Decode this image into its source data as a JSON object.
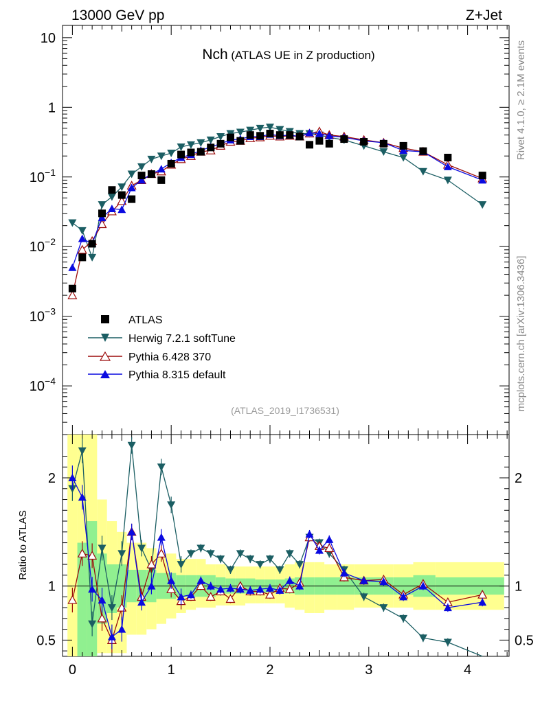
{
  "header": {
    "left": "13000 GeV pp",
    "right": "Z+Jet"
  },
  "title": {
    "main": "Nch",
    "sub": "(ATLAS UE in Z production)"
  },
  "side": {
    "rivet": "Rivet 4.1.0, ≥ 2.1M events",
    "mcplots": "mcplots.cern.ch [arXiv:1306.3436]"
  },
  "analysis_id": "(ATLAS_2019_I1736531)",
  "ratio_ylabel": "Ratio to ATLAS",
  "legend": [
    {
      "label": "ATLAS",
      "series": "atlas"
    },
    {
      "label": "Herwig 7.2.1 softTune",
      "series": "herwig"
    },
    {
      "label": "Pythia 6.428 370",
      "series": "pythia6"
    },
    {
      "label": "Pythia 8.315 default",
      "series": "pythia8"
    }
  ],
  "colors": {
    "herwig": "#1b5e63",
    "pythia6": "#9b0a0a",
    "pythia8": "#0a0ae0",
    "band_inner": "#90f090",
    "band_outer": "#ffff90"
  },
  "chart_data": [
    {
      "type": "scatter",
      "panel": "main",
      "yscale": "log",
      "xlim": [
        -0.1,
        4.42
      ],
      "ylim": [
        2e-05,
        15
      ],
      "x_ticks": [
        0,
        1,
        2,
        3,
        4
      ],
      "y_tick_labels": [
        "10",
        "1",
        "10^-1",
        "10^-2",
        "10^-3",
        "10^-4"
      ],
      "x": [
        0.0,
        0.1,
        0.2,
        0.3,
        0.4,
        0.5,
        0.6,
        0.7,
        0.8,
        0.9,
        1.0,
        1.1,
        1.2,
        1.3,
        1.4,
        1.5,
        1.6,
        1.7,
        1.8,
        1.9,
        2.0,
        2.1,
        2.2,
        2.3,
        2.4,
        2.5,
        2.6,
        2.75,
        2.95,
        3.15,
        3.35,
        3.55,
        3.8,
        4.15
      ],
      "series": [
        {
          "name": "ATLAS",
          "key": "atlas",
          "values": [
            0.0025,
            0.007,
            0.011,
            0.03,
            0.065,
            0.055,
            0.048,
            0.105,
            0.11,
            0.09,
            0.155,
            0.21,
            0.225,
            0.23,
            0.265,
            0.3,
            0.37,
            0.33,
            0.4,
            0.39,
            0.42,
            0.4,
            0.4,
            0.38,
            0.29,
            0.33,
            0.3,
            0.35,
            0.32,
            0.3,
            0.28,
            0.235,
            0.19,
            0.105
          ]
        },
        {
          "name": "Herwig 7.2.1 softTune",
          "key": "herwig",
          "values": [
            0.022,
            0.017,
            0.007,
            0.04,
            0.052,
            0.072,
            0.11,
            0.14,
            0.18,
            0.2,
            0.22,
            0.27,
            0.29,
            0.31,
            0.34,
            0.38,
            0.42,
            0.44,
            0.47,
            0.5,
            0.52,
            0.48,
            0.45,
            0.42,
            0.42,
            0.4,
            0.37,
            0.34,
            0.28,
            0.23,
            0.19,
            0.12,
            0.09,
            0.04
          ]
        },
        {
          "name": "Pythia 6.428 370",
          "key": "pythia6",
          "values": [
            0.002,
            0.009,
            0.012,
            0.021,
            0.032,
            0.045,
            0.075,
            0.09,
            0.11,
            0.12,
            0.15,
            0.18,
            0.2,
            0.23,
            0.24,
            0.28,
            0.32,
            0.33,
            0.36,
            0.37,
            0.39,
            0.38,
            0.39,
            0.38,
            0.42,
            0.45,
            0.4,
            0.38,
            0.34,
            0.31,
            0.26,
            0.23,
            0.15,
            0.095
          ]
        },
        {
          "name": "Pythia 8.315 default",
          "key": "pythia8",
          "values": [
            0.005,
            0.013,
            0.011,
            0.026,
            0.035,
            0.034,
            0.07,
            0.09,
            0.11,
            0.13,
            0.16,
            0.19,
            0.21,
            0.24,
            0.27,
            0.3,
            0.34,
            0.35,
            0.38,
            0.38,
            0.41,
            0.39,
            0.4,
            0.38,
            0.43,
            0.42,
            0.39,
            0.37,
            0.33,
            0.31,
            0.24,
            0.23,
            0.14,
            0.09
          ]
        }
      ]
    },
    {
      "type": "line",
      "panel": "ratio",
      "ylabel": "Ratio to ATLAS",
      "xlim": [
        -0.1,
        4.42
      ],
      "ylim": [
        0.35,
        2.4
      ],
      "y_ticks": [
        0.5,
        1,
        2
      ],
      "y_tick_labels": [
        "0.5",
        "1",
        "2"
      ],
      "x_ticks": [
        0,
        1,
        2,
        3,
        4
      ],
      "reference": 1,
      "x": [
        0.0,
        0.1,
        0.2,
        0.3,
        0.4,
        0.5,
        0.6,
        0.7,
        0.8,
        0.9,
        1.0,
        1.1,
        1.2,
        1.3,
        1.4,
        1.5,
        1.6,
        1.7,
        1.8,
        1.9,
        2.0,
        2.1,
        2.2,
        2.3,
        2.4,
        2.5,
        2.6,
        2.75,
        2.95,
        3.15,
        3.35,
        3.55,
        3.8,
        4.15
      ],
      "band_inner": [
        0.35,
        1.4,
        1.6,
        1.3,
        1.2,
        1.2,
        1.15,
        1.15,
        1.15,
        1.12,
        1.12,
        1.1,
        1.1,
        1.1,
        1.1,
        1.08,
        1.07,
        1.07,
        1.07,
        1.06,
        1.06,
        1.06,
        1.07,
        1.08,
        1.08,
        1.08,
        1.08,
        1.08,
        1.08,
        1.08,
        1.08,
        1.1,
        1.08,
        1.08
      ],
      "band_inner_low": [
        0.35,
        0.35,
        0.35,
        0.65,
        0.75,
        0.8,
        0.85,
        0.85,
        0.85,
        0.88,
        0.88,
        0.9,
        0.9,
        0.9,
        0.9,
        0.92,
        0.93,
        0.93,
        0.93,
        0.94,
        0.94,
        0.94,
        0.93,
        0.92,
        0.92,
        0.92,
        0.92,
        0.92,
        0.92,
        0.92,
        0.92,
        0.9,
        0.92,
        0.92
      ],
      "band_outer": [
        2.4,
        2.4,
        2.4,
        1.8,
        1.6,
        1.5,
        1.4,
        1.4,
        1.35,
        1.3,
        1.3,
        1.25,
        1.25,
        1.25,
        1.2,
        1.2,
        1.18,
        1.18,
        1.18,
        1.18,
        1.18,
        1.18,
        1.2,
        1.22,
        1.22,
        1.22,
        1.2,
        1.2,
        1.2,
        1.2,
        1.2,
        1.22,
        1.22,
        1.22
      ],
      "band_outer_low": [
        0.35,
        0.35,
        0.35,
        0.38,
        0.38,
        0.38,
        0.55,
        0.55,
        0.6,
        0.65,
        0.7,
        0.75,
        0.78,
        0.8,
        0.8,
        0.82,
        0.82,
        0.82,
        0.84,
        0.84,
        0.84,
        0.84,
        0.8,
        0.78,
        0.75,
        0.75,
        0.78,
        0.78,
        0.8,
        0.8,
        0.8,
        0.78,
        0.78,
        0.78
      ],
      "series": [
        {
          "name": "Herwig 7.2.1 softTune",
          "key": "herwig",
          "values": [
            1.9,
            2.25,
            0.65,
            1.35,
            0.8,
            1.3,
            2.3,
            1.35,
            1.15,
            2.1,
            1.75,
            1.2,
            1.3,
            1.35,
            1.3,
            1.25,
            1.15,
            1.3,
            1.25,
            1.2,
            1.25,
            1.15,
            1.3,
            1.2,
            1.45,
            1.4,
            1.3,
            1.15,
            0.9,
            0.8,
            0.7,
            0.52,
            0.48,
            0.32
          ]
        },
        {
          "name": "Pythia 6.428 370",
          "key": "pythia6",
          "values": [
            0.87,
            1.3,
            1.28,
            0.7,
            0.5,
            0.8,
            1.5,
            0.9,
            1.2,
            1.3,
            0.97,
            0.86,
            0.9,
            1.0,
            0.9,
            0.95,
            0.88,
            1.0,
            0.95,
            0.95,
            0.92,
            0.98,
            0.97,
            1.03,
            1.45,
            1.37,
            1.35,
            1.08,
            1.05,
            1.06,
            0.92,
            1.02,
            0.85,
            0.92
          ]
        },
        {
          "name": "Pythia 8.315 default",
          "key": "pythia8",
          "values": [
            2.0,
            1.82,
            0.97,
            0.87,
            0.53,
            0.6,
            1.5,
            0.85,
            1.0,
            1.45,
            1.05,
            0.9,
            0.92,
            1.05,
            1.0,
            0.97,
            0.98,
            0.97,
            0.96,
            0.97,
            0.98,
            0.96,
            1.05,
            1.0,
            1.48,
            1.33,
            1.43,
            1.12,
            1.05,
            1.04,
            0.9,
            1.0,
            0.8,
            0.85
          ]
        }
      ]
    }
  ]
}
